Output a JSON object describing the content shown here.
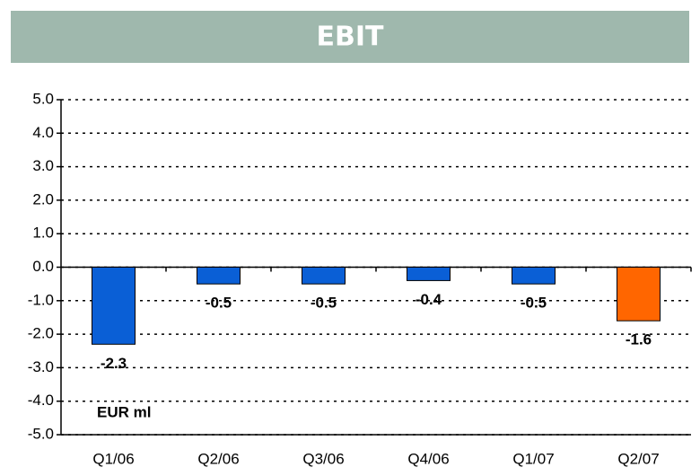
{
  "chart_data": {
    "type": "bar",
    "title": "EBIT",
    "annotation": "EUR ml",
    "categories": [
      "Q1/06",
      "Q2/06",
      "Q3/06",
      "Q4/06",
      "Q1/07",
      "Q2/07"
    ],
    "values": [
      -2.3,
      -0.5,
      -0.5,
      -0.4,
      -0.5,
      -1.6
    ],
    "colors": [
      "#0a5fd6",
      "#0a5fd6",
      "#0a5fd6",
      "#0a5fd6",
      "#0a5fd6",
      "#ff6600"
    ],
    "ylim": [
      -5,
      5
    ],
    "yticks": [
      {
        "value": 5,
        "label": "5.0"
      },
      {
        "value": 4,
        "label": "4.0"
      },
      {
        "value": 3,
        "label": "3.0"
      },
      {
        "value": 2,
        "label": "2.0"
      },
      {
        "value": 1,
        "label": "1.0"
      },
      {
        "value": 0,
        "label": "0.0"
      },
      {
        "value": -1,
        "label": "-1.0"
      },
      {
        "value": -2,
        "label": "-2.0"
      },
      {
        "value": -3,
        "label": "-3.0"
      },
      {
        "value": -4,
        "label": "-4.0"
      },
      {
        "value": -5,
        "label": "-5.0"
      }
    ],
    "grid": true
  }
}
